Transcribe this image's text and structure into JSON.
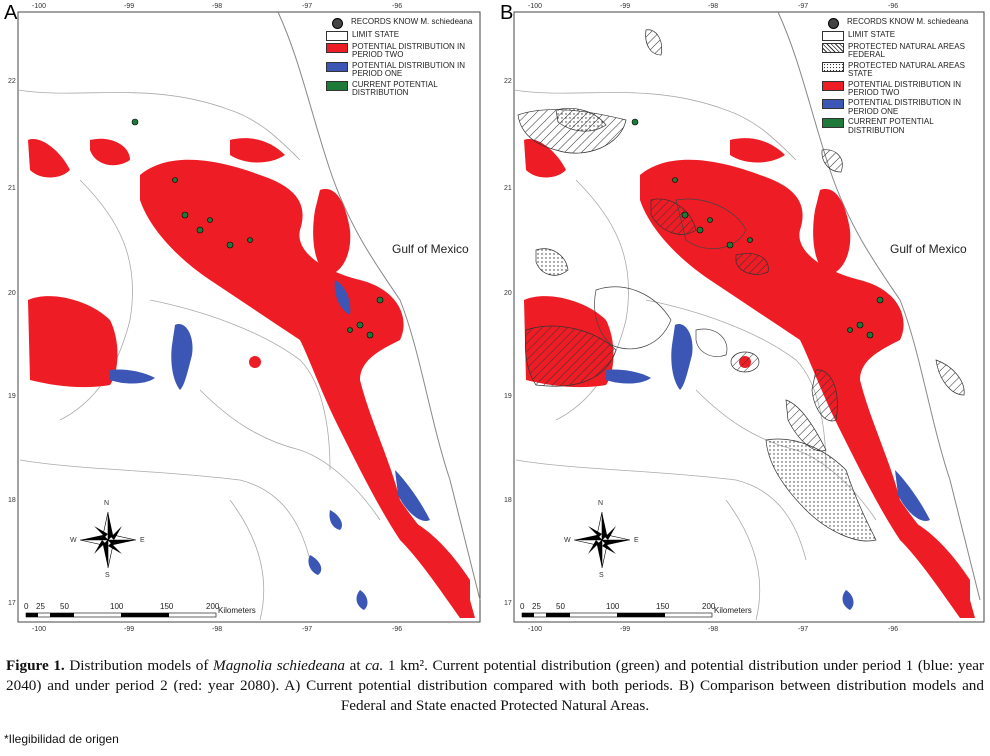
{
  "panels": [
    {
      "letter": "A",
      "legend": [
        {
          "kind": "dot",
          "label": "RECORDS KNOW M. schiedeana"
        },
        {
          "kind": "limit",
          "label": "LIMIT STATE"
        },
        {
          "kind": "red",
          "label": "POTENTIAL DISTRIBUTION IN\nPERIOD TWO"
        },
        {
          "kind": "blue",
          "label": "POTENTIAL DISTRIBUTION IN\nPERIOD ONE"
        },
        {
          "kind": "green",
          "label": "CURRENT POTENTIAL\nDISTRIBUTION"
        }
      ],
      "gulf_label": "Gulf of Mexico",
      "scale": {
        "ticks": [
          "0",
          "25",
          "50",
          "100",
          "150",
          "200"
        ],
        "unit": "Kilometers"
      },
      "compass": {
        "n": "N",
        "s": "S",
        "e": "E",
        "w": "W"
      },
      "lon_ticks": [
        "-100",
        "-99",
        "-98",
        "-97",
        "-96"
      ],
      "lat_ticks": [
        "22",
        "21",
        "20",
        "19",
        "18",
        "17"
      ]
    },
    {
      "letter": "B",
      "legend": [
        {
          "kind": "dot",
          "label": "RECORDS KNOW M. schiedeana"
        },
        {
          "kind": "limit",
          "label": "LIMIT STATE"
        },
        {
          "kind": "hatch",
          "label": "PROTECTED NATURAL AREAS\nFEDERAL"
        },
        {
          "kind": "dots",
          "label": "PROTECTED NATURAL AREAS\nSTATE"
        },
        {
          "kind": "red",
          "label": "POTENTIAL DISTRIBUTION IN\nPERIOD TWO"
        },
        {
          "kind": "blue",
          "label": "POTENTIAL DISTRIBUTION IN\nPERIOD ONE"
        },
        {
          "kind": "green",
          "label": "CURRENT POTENTIAL\nDISTRIBUTION"
        }
      ],
      "gulf_label": "Gulf of Mexico",
      "scale": {
        "ticks": [
          "0",
          "25",
          "50",
          "100",
          "150",
          "200"
        ],
        "unit": "Kilometers"
      },
      "compass": {
        "n": "N",
        "s": "S",
        "e": "E",
        "w": "W"
      },
      "lon_ticks": [
        "-100",
        "-99",
        "-98",
        "-97",
        "-96"
      ],
      "lat_ticks": [
        "22",
        "21",
        "20",
        "19",
        "18",
        "17"
      ]
    }
  ],
  "colors": {
    "red": "#ee1c24",
    "blue": "#3b56b5",
    "green": "#1f7a3a",
    "border": "#888888"
  },
  "caption": {
    "label": "Figure 1.",
    "part1": " Distribution models of ",
    "species": "Magnolia schiedeana",
    "part2": " at ",
    "ca": "ca.",
    "part3": " 1 km². Current potential distribution (green) and potential distribution under period 1 (blue: year 2040) and under period 2 (red: year 2080). A) Current potential distribution compared with both periods. B) Comparison between distribution models and Federal and State enacted Protected Natural Areas."
  },
  "note": "*Ilegibilidad de origen"
}
